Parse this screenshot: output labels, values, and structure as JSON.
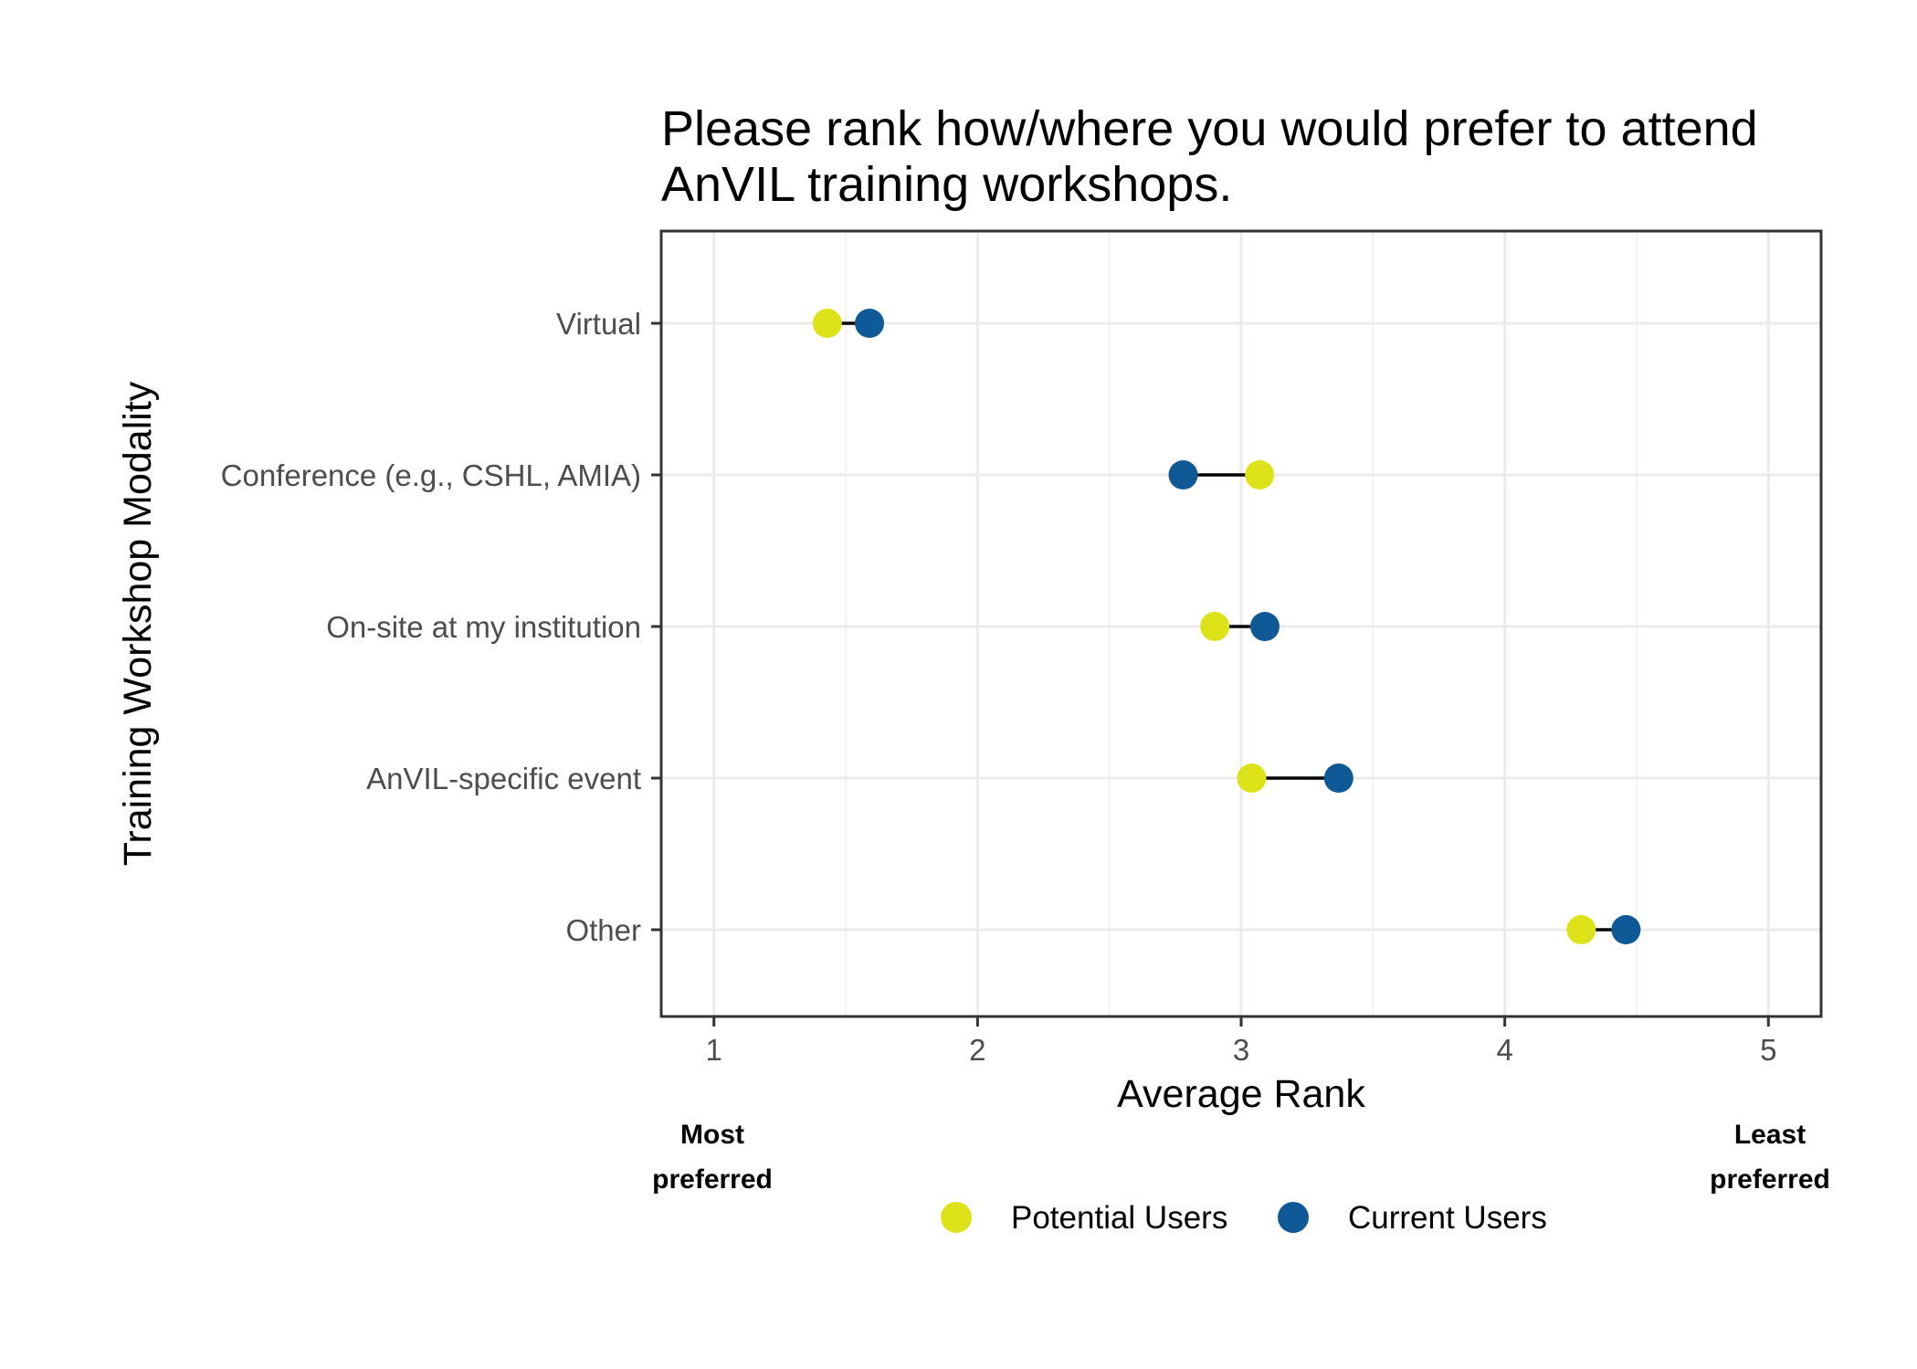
{
  "chart_data": {
    "type": "dumbbell",
    "title_lines": [
      "Please rank how/where you would prefer to attend",
      "AnVIL training workshops."
    ],
    "xlabel": "Average Rank",
    "ylabel": "Training Workshop Modality",
    "xlim": [
      0.8,
      5.2
    ],
    "x_ticks": [
      "1",
      "2",
      "3",
      "4",
      "5"
    ],
    "x_tick_values": [
      1,
      2,
      3,
      4,
      5
    ],
    "grid": true,
    "categories": [
      "Virtual",
      "Conference (e.g., CSHL, AMIA)",
      "On-site at my institution",
      "AnVIL-specific event",
      "Other"
    ],
    "series": [
      {
        "name": "Potential Users",
        "color": "#dde318",
        "values": [
          1.43,
          3.07,
          2.9,
          3.04,
          4.29
        ]
      },
      {
        "name": "Current Users",
        "color": "#0f5a96",
        "values": [
          1.59,
          2.78,
          3.09,
          3.37,
          4.46
        ]
      }
    ],
    "annotations": {
      "left": [
        "Most",
        "preferred"
      ],
      "right": [
        "Least",
        "preferred"
      ]
    },
    "legend_position": "bottom"
  }
}
